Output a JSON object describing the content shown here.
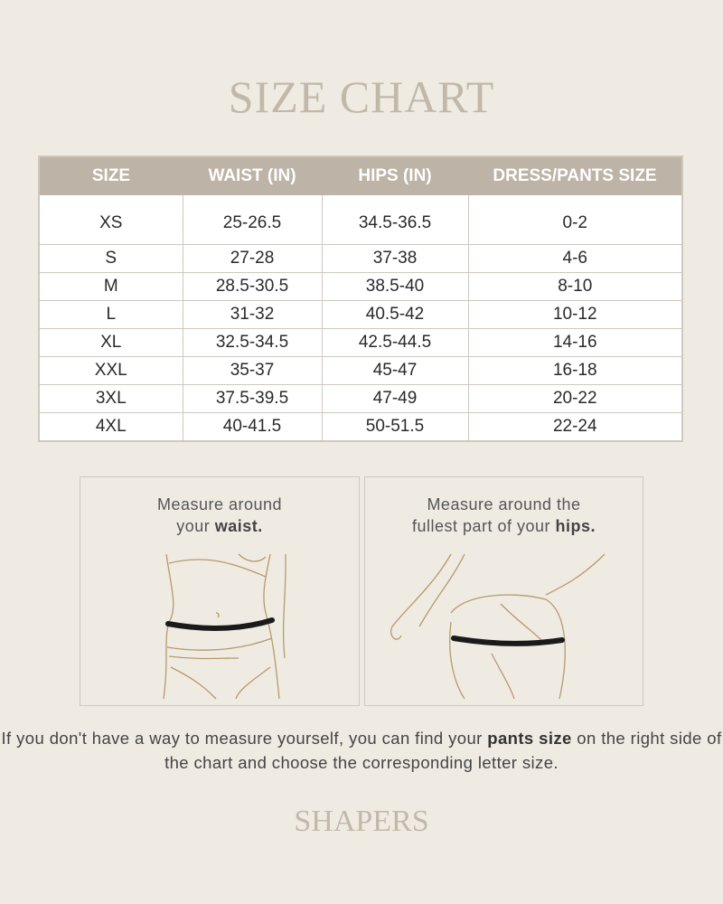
{
  "title": "SIZE CHART",
  "table": {
    "headers": [
      "SIZE",
      "WAIST (IN)",
      "HIPS (IN)",
      "DRESS/PANTS SIZE"
    ],
    "rows": [
      [
        "XS",
        "25-26.5",
        "34.5-36.5",
        "0-2"
      ],
      [
        "S",
        "27-28",
        "37-38",
        "4-6"
      ],
      [
        "M",
        "28.5-30.5",
        "38.5-40",
        "8-10"
      ],
      [
        "L",
        "31-32",
        "40.5-42",
        "10-12"
      ],
      [
        "XL",
        "32.5-34.5",
        "42.5-44.5",
        "14-16"
      ],
      [
        "XXL",
        "35-37",
        "45-47",
        "16-18"
      ],
      [
        "3XL",
        "37.5-39.5",
        "47-49",
        "20-22"
      ],
      [
        "4XL",
        "40-41.5",
        "50-51.5",
        "22-24"
      ]
    ]
  },
  "panels": {
    "waist": {
      "line1": "Measure around",
      "line2_pre": "your ",
      "line2_bold": "waist."
    },
    "hips": {
      "line1": "Measure around the",
      "line2_pre": "fullest part of your ",
      "line2_bold": "hips."
    }
  },
  "note": {
    "pre": "If you don't have a way to measure yourself, you can find your ",
    "bold": "pants size",
    "post": " on the right side of the chart and choose the corresponding letter size."
  },
  "brand": "SHAPERS",
  "colors": {
    "background": "#efebe3",
    "header": "#bdb3a6",
    "title": "#c2b8aa",
    "line_art": "#b59a6a"
  }
}
